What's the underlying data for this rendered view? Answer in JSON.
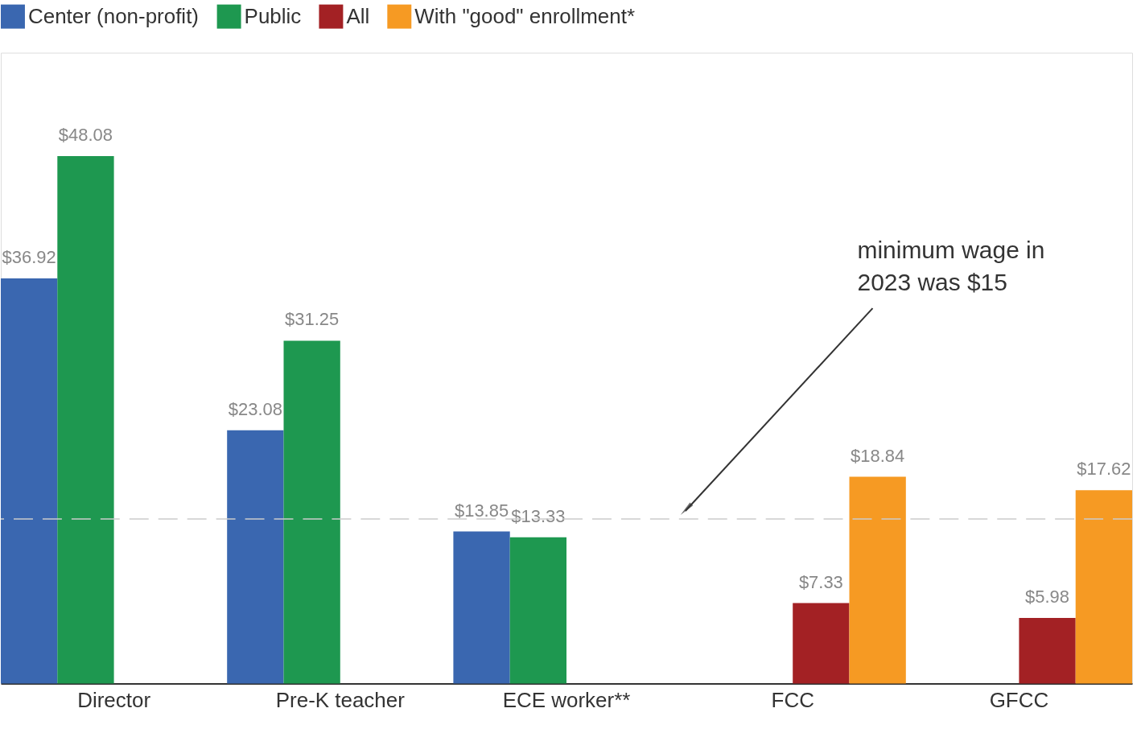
{
  "chart_data": {
    "type": "bar",
    "categories": [
      "Director",
      "Pre-K teacher",
      "ECE worker**",
      "FCC",
      "GFCC"
    ],
    "series": [
      {
        "name": "Center (non-profit)",
        "color": "#3a67b0",
        "values": [
          36.92,
          23.08,
          13.85,
          null,
          null
        ],
        "value_labels": [
          "$36.92",
          "$23.08",
          "$13.85",
          null,
          null
        ]
      },
      {
        "name": "Public",
        "color": "#1e9850",
        "values": [
          48.08,
          31.25,
          13.33,
          null,
          null
        ],
        "value_labels": [
          "$48.08",
          "$31.25",
          "$13.33",
          null,
          null
        ]
      },
      {
        "name": "All",
        "color": "#a32124",
        "values": [
          null,
          null,
          null,
          7.33,
          5.98
        ],
        "value_labels": [
          null,
          null,
          null,
          "$7.33",
          "$5.98"
        ]
      },
      {
        "name": "With \"good\" enrollment*",
        "color": "#f69a23",
        "values": [
          null,
          null,
          null,
          18.84,
          17.62
        ],
        "value_labels": [
          null,
          null,
          null,
          "$18.84",
          "$17.62"
        ]
      }
    ],
    "ylim": [
      0,
      57.5
    ],
    "ref_lines": [
      {
        "axis": "y",
        "value": 15,
        "label": null,
        "color": "#cccccc",
        "line_style": "dashed"
      }
    ],
    "annotations": [
      "minimum wage in 2023 was $15"
    ],
    "legend": "top left"
  }
}
